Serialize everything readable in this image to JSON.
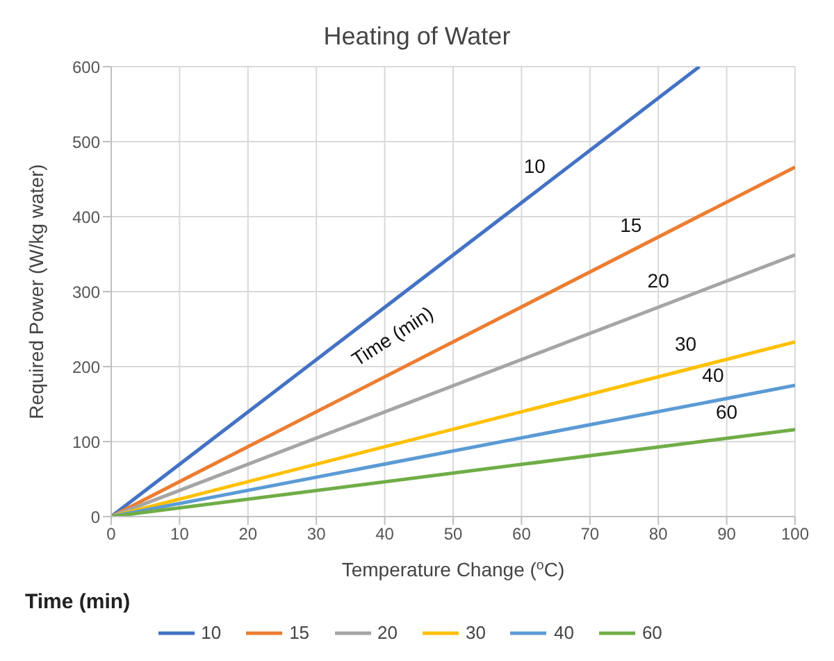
{
  "chart_data": {
    "type": "line",
    "title": "Heating of Water",
    "xlabel": "Temperature Change ($^{o}$C)",
    "ylabel": "Required Power (W/kg water)",
    "legend_title": "Time (min)",
    "series": [
      {
        "name": "10",
        "color": "#4472c4",
        "x": [
          0,
          86
        ],
        "values": [
          0,
          600
        ]
      },
      {
        "name": "15",
        "color": "#ed7d31",
        "x": [
          0,
          100
        ],
        "values": [
          0,
          466
        ]
      },
      {
        "name": "20",
        "color": "#a5a5a5",
        "x": [
          0,
          100
        ],
        "values": [
          0,
          349
        ]
      },
      {
        "name": "30",
        "color": "#ffc000",
        "x": [
          0,
          100
        ],
        "values": [
          0,
          233
        ]
      },
      {
        "name": "40",
        "color": "#5b9bd5",
        "x": [
          0,
          100
        ],
        "values": [
          0,
          175
        ]
      },
      {
        "name": "60",
        "color": "#70ad47",
        "x": [
          0,
          100
        ],
        "values": [
          0,
          116
        ]
      }
    ],
    "annotations": [
      "Time (min)"
    ],
    "xlim": [
      0,
      100
    ],
    "xticks": [
      0,
      10,
      20,
      30,
      40,
      50,
      60,
      70,
      80,
      90,
      100
    ],
    "ylim": [
      0,
      600
    ],
    "yticks": [
      0,
      100,
      200,
      300,
      400,
      500,
      600
    ],
    "grid": true,
    "legend": "bottom",
    "marker": "none",
    "line_style": "solid"
  }
}
